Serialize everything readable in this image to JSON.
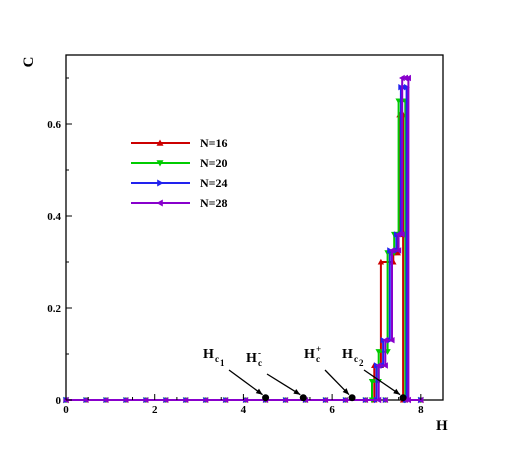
{
  "chart_data": {
    "type": "line",
    "xlabel": "H",
    "ylabel": "C",
    "xlim": [
      0,
      8.5
    ],
    "ylim": [
      0,
      0.75
    ],
    "x_ticks": [
      0,
      2,
      4,
      6,
      8
    ],
    "y_ticks": [
      0,
      0.2,
      0.4,
      0.6
    ],
    "x_tick_labels": [
      "0",
      "2",
      "4",
      "6",
      "8"
    ],
    "y_tick_labels": [
      "0",
      "0.2",
      "0.4",
      "0.6"
    ],
    "grid": false,
    "legend_position": "upper-left",
    "series": [
      {
        "name": "N=16",
        "color": "#cc0000",
        "marker": "triangle-up",
        "x": [
          0,
          6.95,
          6.95,
          7.1,
          7.1,
          7.38,
          7.38,
          7.48,
          7.48,
          7.52,
          7.52,
          7.55,
          7.55,
          7.6,
          7.6,
          8.0
        ],
        "y": [
          0,
          0,
          0.075,
          0.075,
          0.3,
          0.3,
          0.32,
          0.32,
          0.36,
          0.36,
          0.62,
          0.62,
          0.62,
          0.62,
          0,
          0
        ]
      },
      {
        "name": "N=20",
        "color": "#00cc00",
        "marker": "triangle-down",
        "x": [
          0,
          6.9,
          6.9,
          7.05,
          7.05,
          7.25,
          7.25,
          7.4,
          7.4,
          7.5,
          7.5,
          7.58,
          7.58,
          7.65,
          7.65,
          8.0
        ],
        "y": [
          0,
          0,
          0.04,
          0.04,
          0.105,
          0.105,
          0.32,
          0.32,
          0.36,
          0.36,
          0.65,
          0.65,
          0.65,
          0.65,
          0,
          0
        ]
      },
      {
        "name": "N=24",
        "color": "#2222ee",
        "marker": "triangle-right",
        "x": [
          0,
          7.0,
          7.0,
          7.15,
          7.15,
          7.3,
          7.3,
          7.45,
          7.45,
          7.55,
          7.55,
          7.62,
          7.62,
          7.68,
          7.68,
          8.0
        ],
        "y": [
          0,
          0,
          0.075,
          0.075,
          0.13,
          0.13,
          0.325,
          0.325,
          0.36,
          0.36,
          0.68,
          0.68,
          0.68,
          0.68,
          0,
          0
        ]
      },
      {
        "name": "N=28",
        "color": "#8800cc",
        "marker": "triangle-left",
        "x": [
          0,
          7.05,
          7.05,
          7.2,
          7.2,
          7.35,
          7.35,
          7.5,
          7.5,
          7.58,
          7.58,
          7.65,
          7.65,
          7.72,
          7.72,
          8.0
        ],
        "y": [
          0,
          0,
          0.075,
          0.075,
          0.13,
          0.13,
          0.325,
          0.325,
          0.36,
          0.36,
          0.7,
          0.7,
          0.7,
          0.7,
          0,
          0
        ]
      }
    ],
    "annotations": [
      {
        "label": "H",
        "subscript": "c",
        "sub_sub": "1",
        "superscript": "",
        "point": [
          4.5,
          0.005
        ]
      },
      {
        "label": "H",
        "subscript": "c",
        "sub_sub": "",
        "superscript": "-",
        "point": [
          5.35,
          0.005
        ]
      },
      {
        "label": "H",
        "subscript": "c",
        "sub_sub": "",
        "superscript": "+",
        "point": [
          6.45,
          0.005
        ]
      },
      {
        "label": "H",
        "subscript": "c",
        "sub_sub": "2",
        "superscript": "",
        "point": [
          7.6,
          0.005
        ]
      }
    ]
  }
}
